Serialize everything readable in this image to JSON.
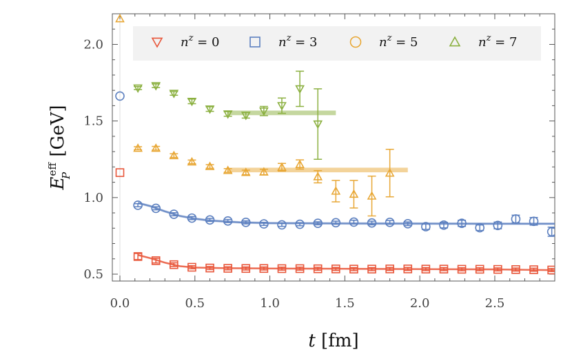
{
  "chart_data": {
    "type": "scatter",
    "xlabel": "t [fm]",
    "ylabel": "E_P^eff [GeV]",
    "xlim": [
      -0.05,
      2.9
    ],
    "ylim": [
      0.45,
      2.2
    ],
    "x_ticks": [
      "0.0",
      "0.5",
      "1.0",
      "1.5",
      "2.0",
      "2.5"
    ],
    "y_ticks": [
      "0.5",
      "1.0",
      "1.5",
      "2.0"
    ],
    "legend_placement": "top",
    "series": [
      {
        "name": "n^z = 0",
        "label_main": "n",
        "label_sup": "z",
        "label_rest": " = 0",
        "marker": "square",
        "color": "#E8563A",
        "t0_point": {
          "x": 0.0,
          "y": 1.163
        },
        "points": [
          {
            "x": 0.12,
            "y": 0.615,
            "err": 0.02
          },
          {
            "x": 0.24,
            "y": 0.588,
            "err": 0.015
          },
          {
            "x": 0.36,
            "y": 0.562,
            "err": 0.012
          },
          {
            "x": 0.48,
            "y": 0.545,
            "err": 0.01
          },
          {
            "x": 0.6,
            "y": 0.54,
            "err": 0.01
          },
          {
            "x": 0.72,
            "y": 0.538,
            "err": 0.01
          },
          {
            "x": 0.84,
            "y": 0.537,
            "err": 0.01
          },
          {
            "x": 0.96,
            "y": 0.537,
            "err": 0.01
          },
          {
            "x": 1.08,
            "y": 0.536,
            "err": 0.01
          },
          {
            "x": 1.2,
            "y": 0.536,
            "err": 0.01
          },
          {
            "x": 1.32,
            "y": 0.535,
            "err": 0.01
          },
          {
            "x": 1.44,
            "y": 0.534,
            "err": 0.01
          },
          {
            "x": 1.56,
            "y": 0.533,
            "err": 0.01
          },
          {
            "x": 1.68,
            "y": 0.533,
            "err": 0.01
          },
          {
            "x": 1.8,
            "y": 0.534,
            "err": 0.01
          },
          {
            "x": 1.92,
            "y": 0.534,
            "err": 0.01
          },
          {
            "x": 2.04,
            "y": 0.533,
            "err": 0.01
          },
          {
            "x": 2.16,
            "y": 0.533,
            "err": 0.01
          },
          {
            "x": 2.28,
            "y": 0.532,
            "err": 0.01
          },
          {
            "x": 2.4,
            "y": 0.532,
            "err": 0.01
          },
          {
            "x": 2.52,
            "y": 0.531,
            "err": 0.01
          },
          {
            "x": 2.64,
            "y": 0.53,
            "err": 0.01
          },
          {
            "x": 2.76,
            "y": 0.529,
            "err": 0.01
          },
          {
            "x": 2.88,
            "y": 0.527,
            "err": 0.01
          }
        ],
        "fit": [
          [
            0.12,
            0.625
          ],
          [
            0.2,
            0.605
          ],
          [
            0.3,
            0.575
          ],
          [
            0.4,
            0.552
          ],
          [
            0.5,
            0.543
          ],
          [
            0.7,
            0.539
          ],
          [
            1.0,
            0.537
          ],
          [
            1.5,
            0.535
          ],
          [
            2.0,
            0.533
          ],
          [
            2.5,
            0.531
          ],
          [
            2.9,
            0.526
          ]
        ],
        "fit_band": 0.006
      },
      {
        "name": "n^z = 3",
        "label_main": "n",
        "label_sup": "z",
        "label_rest": " = 3",
        "marker": "circle",
        "color": "#5B7FBF",
        "t0_point": {
          "x": 0.0,
          "y": 1.663
        },
        "points": [
          {
            "x": 0.12,
            "y": 0.95,
            "err": 0.01
          },
          {
            "x": 0.24,
            "y": 0.93,
            "err": 0.01
          },
          {
            "x": 0.36,
            "y": 0.891,
            "err": 0.01
          },
          {
            "x": 0.48,
            "y": 0.866,
            "err": 0.01
          },
          {
            "x": 0.6,
            "y": 0.854,
            "err": 0.01
          },
          {
            "x": 0.72,
            "y": 0.847,
            "err": 0.01
          },
          {
            "x": 0.84,
            "y": 0.838,
            "err": 0.01
          },
          {
            "x": 0.96,
            "y": 0.828,
            "err": 0.01
          },
          {
            "x": 1.08,
            "y": 0.822,
            "err": 0.01
          },
          {
            "x": 1.2,
            "y": 0.826,
            "err": 0.01
          },
          {
            "x": 1.32,
            "y": 0.832,
            "err": 0.01
          },
          {
            "x": 1.44,
            "y": 0.836,
            "err": 0.01
          },
          {
            "x": 1.56,
            "y": 0.84,
            "err": 0.012
          },
          {
            "x": 1.68,
            "y": 0.834,
            "err": 0.012
          },
          {
            "x": 1.8,
            "y": 0.838,
            "err": 0.012
          },
          {
            "x": 1.92,
            "y": 0.829,
            "err": 0.012
          },
          {
            "x": 2.04,
            "y": 0.81,
            "err": 0.018
          },
          {
            "x": 2.16,
            "y": 0.82,
            "err": 0.018
          },
          {
            "x": 2.28,
            "y": 0.832,
            "err": 0.02
          },
          {
            "x": 2.4,
            "y": 0.803,
            "err": 0.018
          },
          {
            "x": 2.52,
            "y": 0.818,
            "err": 0.022
          },
          {
            "x": 2.64,
            "y": 0.86,
            "err": 0.025
          },
          {
            "x": 2.76,
            "y": 0.845,
            "err": 0.025
          },
          {
            "x": 2.88,
            "y": 0.777,
            "err": 0.03
          }
        ],
        "fit": [
          [
            0.12,
            0.965
          ],
          [
            0.2,
            0.945
          ],
          [
            0.3,
            0.91
          ],
          [
            0.4,
            0.88
          ],
          [
            0.5,
            0.862
          ],
          [
            0.6,
            0.85
          ],
          [
            0.8,
            0.838
          ],
          [
            1.0,
            0.833
          ],
          [
            1.5,
            0.831
          ],
          [
            2.0,
            0.83
          ],
          [
            2.5,
            0.829
          ],
          [
            2.9,
            0.829
          ]
        ],
        "fit_band": 0.008
      },
      {
        "name": "n^z = 5",
        "label_main": "n",
        "label_sup": "z",
        "label_rest": " = 5",
        "marker": "circle-open",
        "color": "#E8A735",
        "t0_point": {
          "x": 0.0,
          "y": 2.168
        },
        "points": [
          {
            "x": 0.12,
            "y": 1.322,
            "err": 0.01
          },
          {
            "x": 0.24,
            "y": 1.322,
            "err": 0.012
          },
          {
            "x": 0.36,
            "y": 1.274,
            "err": 0.012
          },
          {
            "x": 0.48,
            "y": 1.233,
            "err": 0.012
          },
          {
            "x": 0.6,
            "y": 1.203,
            "err": 0.012
          },
          {
            "x": 0.72,
            "y": 1.177,
            "err": 0.012
          },
          {
            "x": 0.84,
            "y": 1.164,
            "err": 0.015
          },
          {
            "x": 0.96,
            "y": 1.167,
            "err": 0.018
          },
          {
            "x": 1.08,
            "y": 1.198,
            "err": 0.025
          },
          {
            "x": 1.2,
            "y": 1.216,
            "err": 0.03
          },
          {
            "x": 1.32,
            "y": 1.136,
            "err": 0.04
          },
          {
            "x": 1.44,
            "y": 1.042,
            "err": 0.07
          },
          {
            "x": 1.56,
            "y": 1.022,
            "err": 0.09
          },
          {
            "x": 1.68,
            "y": 1.01,
            "err": 0.13
          },
          {
            "x": 1.8,
            "y": 1.16,
            "err": 0.155
          }
        ],
        "band": {
          "x0": 0.72,
          "x1": 1.92,
          "y": 1.18,
          "half": 0.015
        }
      },
      {
        "name": "n^z = 7",
        "label_main": "n",
        "label_sup": "z",
        "label_rest": " = 7",
        "marker": "triangle",
        "color": "#8BB040",
        "points": [
          {
            "x": 0.12,
            "y": 1.715,
            "err": 0.01
          },
          {
            "x": 0.24,
            "y": 1.73,
            "err": 0.012
          },
          {
            "x": 0.36,
            "y": 1.68,
            "err": 0.012
          },
          {
            "x": 0.48,
            "y": 1.628,
            "err": 0.015
          },
          {
            "x": 0.6,
            "y": 1.578,
            "err": 0.015
          },
          {
            "x": 0.72,
            "y": 1.546,
            "err": 0.015
          },
          {
            "x": 0.84,
            "y": 1.537,
            "err": 0.018
          },
          {
            "x": 0.96,
            "y": 1.565,
            "err": 0.03
          },
          {
            "x": 1.08,
            "y": 1.6,
            "err": 0.05
          },
          {
            "x": 1.2,
            "y": 1.71,
            "err": 0.115
          },
          {
            "x": 1.32,
            "y": 1.48,
            "err": 0.23
          }
        ],
        "band": {
          "x0": 0.72,
          "x1": 1.44,
          "y": 1.553,
          "half": 0.015
        }
      }
    ]
  }
}
